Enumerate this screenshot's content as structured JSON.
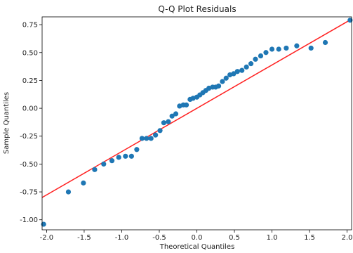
{
  "chart_data": {
    "type": "scatter",
    "title": "Q-Q Plot Residuals",
    "xlabel": "Theoretical Quantiles",
    "ylabel": "Sample Quantiles",
    "xlim": [
      -2.06,
      2.06
    ],
    "ylim": [
      -1.09,
      0.82
    ],
    "grid": false,
    "x_ticks": [
      {
        "value": -2.0,
        "label": "-2.0"
      },
      {
        "value": -1.5,
        "label": "-1.5"
      },
      {
        "value": -1.0,
        "label": "-1.0"
      },
      {
        "value": -0.5,
        "label": "-0.5"
      },
      {
        "value": 0.0,
        "label": "0.0"
      },
      {
        "value": 0.5,
        "label": "0.5"
      },
      {
        "value": 1.0,
        "label": "1.0"
      },
      {
        "value": 1.5,
        "label": "1.5"
      },
      {
        "value": 2.0,
        "label": "2.0"
      }
    ],
    "y_ticks": [
      {
        "value": -1.0,
        "label": "-1.00"
      },
      {
        "value": -0.75,
        "label": "-0.75"
      },
      {
        "value": -0.5,
        "label": "-0.50"
      },
      {
        "value": -0.25,
        "label": "-0.25"
      },
      {
        "value": 0.0,
        "label": "0.00"
      },
      {
        "value": 0.25,
        "label": "0.25"
      },
      {
        "value": 0.5,
        "label": "0.50"
      },
      {
        "value": 0.75,
        "label": "0.75"
      }
    ],
    "series": [
      {
        "color": "#1f77b4",
        "x": [
          -2.04,
          -1.71,
          -1.51,
          -1.36,
          -1.24,
          -1.13,
          -1.04,
          -0.95,
          -0.87,
          -0.8,
          -0.73,
          -0.67,
          -0.61,
          -0.55,
          -0.49,
          -0.44,
          -0.38,
          -0.33,
          -0.28,
          -0.23,
          -0.18,
          -0.14,
          -0.09,
          -0.05,
          0.0,
          0.04,
          0.08,
          0.12,
          0.16,
          0.21,
          0.25,
          0.29,
          0.34,
          0.39,
          0.44,
          0.49,
          0.54,
          0.6,
          0.66,
          0.72,
          0.78,
          0.85,
          0.92,
          1.0,
          1.09,
          1.19,
          1.33,
          1.52,
          1.71,
          2.04
        ],
        "y": [
          -1.04,
          -0.75,
          -0.67,
          -0.55,
          -0.5,
          -0.47,
          -0.44,
          -0.43,
          -0.43,
          -0.37,
          -0.27,
          -0.27,
          -0.27,
          -0.24,
          -0.2,
          -0.13,
          -0.12,
          -0.07,
          -0.05,
          0.02,
          0.03,
          0.03,
          0.08,
          0.09,
          0.1,
          0.12,
          0.14,
          0.16,
          0.18,
          0.19,
          0.19,
          0.2,
          0.24,
          0.27,
          0.3,
          0.31,
          0.33,
          0.34,
          0.37,
          0.4,
          0.44,
          0.47,
          0.5,
          0.53,
          0.53,
          0.54,
          0.56,
          0.54,
          0.59,
          0.79
        ]
      }
    ],
    "reference_line": {
      "color": "#ff2020",
      "x": [
        -2.06,
        2.06
      ],
      "y": [
        -0.8,
        0.8
      ]
    }
  }
}
